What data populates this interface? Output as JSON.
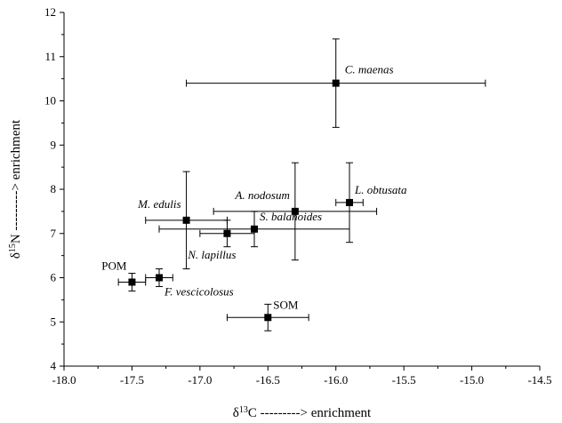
{
  "chart_data": {
    "type": "scatter",
    "title": "",
    "xlabel": "δ13C ---------> enrichment",
    "ylabel": "δ15N ---------> enrichment",
    "xlim": [
      -18.0,
      -14.5
    ],
    "ylim": [
      4,
      12
    ],
    "x_ticks": [
      -18.0,
      -17.5,
      -17.0,
      -16.5,
      -16.0,
      -15.5,
      -15.0,
      -14.5
    ],
    "y_ticks": [
      4,
      5,
      6,
      7,
      8,
      9,
      10,
      11,
      12
    ],
    "x_tick_labels": [
      "-18.0",
      "-17.5",
      "-17.0",
      "-16.5",
      "-16.0",
      "-15.5",
      "-15.0",
      "-14.5"
    ],
    "y_tick_labels": [
      "4",
      "5",
      "6",
      "7",
      "8",
      "9",
      "10",
      "11",
      "12"
    ],
    "grid": false,
    "points": [
      {
        "label": "C. maenas",
        "italic": true,
        "x": -16.0,
        "y": 10.4,
        "x_err": 1.1,
        "y_err": 1.0,
        "label_pos": "right"
      },
      {
        "label": "L. obtusata",
        "italic": true,
        "x": -15.9,
        "y": 7.7,
        "x_err": 0.1,
        "y_err": 0.9,
        "label_pos": "above-right"
      },
      {
        "label": "A. nodosum",
        "italic": true,
        "x": -16.3,
        "y": 7.5,
        "x_err": 0.6,
        "y_err": 1.1,
        "label_pos": "above-left"
      },
      {
        "label": "M. edulis",
        "italic": true,
        "x": -17.1,
        "y": 7.3,
        "x_err": 0.3,
        "y_err": 1.1,
        "label_pos": "above-left"
      },
      {
        "label": "S. balanoides",
        "italic": true,
        "x": -16.6,
        "y": 7.1,
        "x_err": 0.7,
        "y_err": 0.4,
        "label_pos": "above-right"
      },
      {
        "label": "N. lapillus",
        "italic": true,
        "x": -16.8,
        "y": 7.0,
        "x_err": 0.2,
        "y_err": 0.3,
        "label_pos": "below-left"
      },
      {
        "label": "F. vescicolosus",
        "italic": true,
        "x": -17.3,
        "y": 6.0,
        "x_err": 0.1,
        "y_err": 0.2,
        "label_pos": "below-right"
      },
      {
        "label": "POM",
        "italic": false,
        "x": -17.5,
        "y": 5.9,
        "x_err": 0.1,
        "y_err": 0.2,
        "label_pos": "above-left"
      },
      {
        "label": "SOM",
        "italic": false,
        "x": -16.5,
        "y": 5.1,
        "x_err": 0.3,
        "y_err": 0.3,
        "label_pos": "above-right"
      }
    ]
  }
}
